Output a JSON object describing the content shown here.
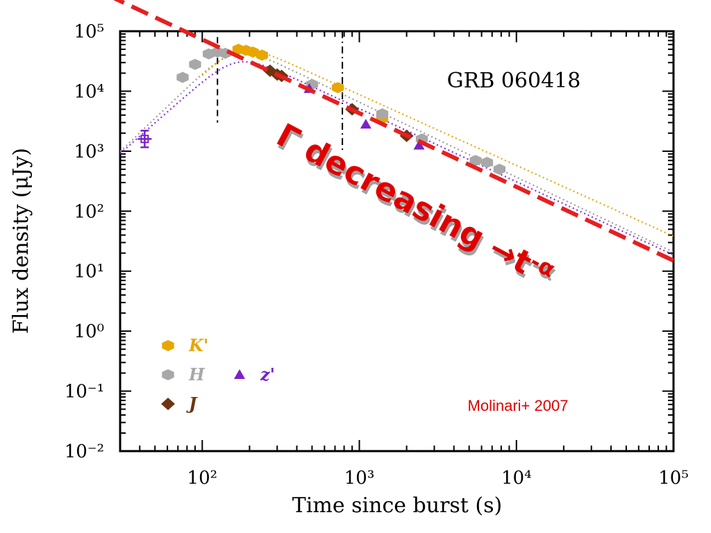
{
  "chart_data": {
    "type": "scatter",
    "title": "GRB 060418",
    "xlabel": "Time since burst (s)",
    "ylabel": "Flux density (μJy)",
    "xscale": "log",
    "yscale": "log",
    "xlim": [
      30,
      100000
    ],
    "ylim": [
      0.01,
      100000
    ],
    "x_ticks": [
      {
        "value": 100,
        "label": "10²"
      },
      {
        "value": 1000,
        "label": "10³"
      },
      {
        "value": 10000,
        "label": "10⁴"
      },
      {
        "value": 100000,
        "label": "10⁵"
      }
    ],
    "y_ticks": [
      {
        "value": 100000,
        "label": "10⁵"
      },
      {
        "value": 10000,
        "label": "10⁴"
      },
      {
        "value": 1000,
        "label": "10³"
      },
      {
        "value": 100,
        "label": "10²"
      },
      {
        "value": 10,
        "label": "10¹"
      },
      {
        "value": 1,
        "label": "10⁰"
      },
      {
        "value": 0.1,
        "label": "10⁻¹"
      },
      {
        "value": 0.01,
        "label": "10⁻²"
      }
    ],
    "series": [
      {
        "name": "K'",
        "color": "#e8a600",
        "marker": "hexagon",
        "x": [
          170,
          190,
          210,
          240,
          730,
          1400
        ],
        "y": [
          50000,
          48000,
          45000,
          40000,
          11500,
          3500
        ]
      },
      {
        "name": "H",
        "color": "#a8a8a8",
        "marker": "hexagon",
        "x": [
          75,
          90,
          110,
          125,
          140,
          500,
          1400,
          2500,
          5500,
          6500,
          7800
        ],
        "y": [
          17000,
          28000,
          42000,
          45000,
          43000,
          13000,
          4200,
          1600,
          700,
          650,
          500
        ]
      },
      {
        "name": "J",
        "color": "#6b3510",
        "marker": "diamond",
        "x": [
          270,
          300,
          320,
          900,
          2000
        ],
        "y": [
          22000,
          19000,
          18000,
          5000,
          1800
        ]
      },
      {
        "name": "z'",
        "color": "#7a22c8",
        "marker": "triangle",
        "x": [
          480,
          1100,
          2400
        ],
        "y": [
          11000,
          2800,
          1250
        ]
      },
      {
        "name": "",
        "color": "#7a22c8",
        "marker": "errorbar-x",
        "x": [
          43
        ],
        "y": [
          1600
        ]
      }
    ],
    "model_curves": [
      {
        "color": "#9a9a9a",
        "style": "dotted",
        "peak_t": 160,
        "peak_f": 42000,
        "rise_index": 2.5,
        "decay_index": 1.25,
        "t0": 30
      },
      {
        "color": "#8a2be2",
        "style": "dotted",
        "peak_t": 165,
        "peak_f": 30000,
        "rise_index": 2.3,
        "decay_index": 1.22,
        "t0": 30
      },
      {
        "color": "#e8a600",
        "style": "dotted",
        "peak_t": 170,
        "peak_f": 46000,
        "rise_index": 2.5,
        "decay_index": 1.18,
        "t0": 100
      }
    ],
    "vertical_lines": [
      {
        "x": 125,
        "y_top": 80000,
        "y_bottom": 3000,
        "style": "dashed"
      },
      {
        "x": 780,
        "y_top": 100000,
        "y_bottom": 1000,
        "style": "dash-dot"
      }
    ],
    "legend_placement": "bottom-left",
    "grid": false
  },
  "overlay": {
    "trend_line": {
      "color": "#e52020",
      "x_start": 25,
      "y_start": 400000,
      "x_end": 100000,
      "y_end": 15
    },
    "annotation_main": "Γ decreasing →t",
    "annotation_exp": "-α",
    "credit": "Molinari+ 2007"
  }
}
